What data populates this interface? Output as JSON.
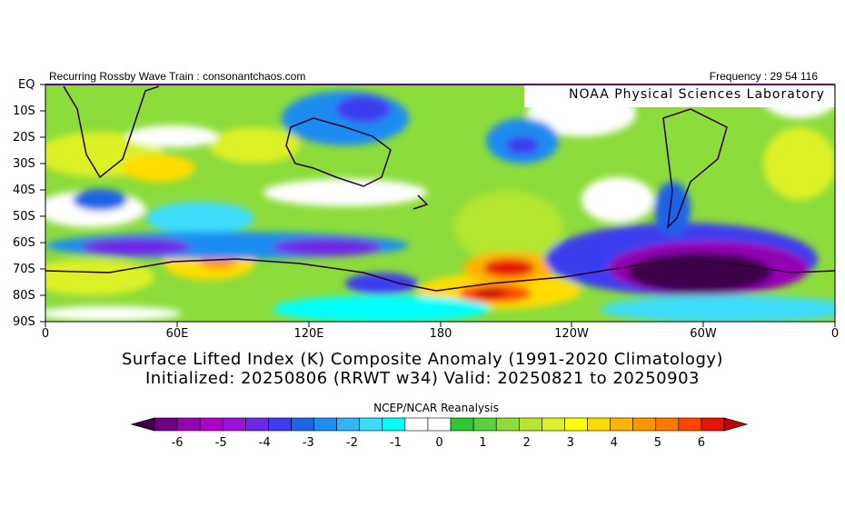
{
  "header": {
    "left_text": "Recurring Rossby Wave Train : consonantchaos.com",
    "right_text": "Frequency : 29 54 116"
  },
  "map": {
    "watermark": "NOAA Physical Sciences Laboratory",
    "lat_labels": [
      "EQ",
      "10S",
      "20S",
      "30S",
      "40S",
      "50S",
      "60S",
      "70S",
      "80S",
      "90S"
    ],
    "lon_labels": [
      "0",
      "60E",
      "120E",
      "180",
      "120W",
      "60W",
      "0"
    ]
  },
  "titles": {
    "line1": "Surface Lifted Index (K) Composite Anomaly (1991-2020 Climatology)",
    "line2": "Initialized: 20250806 (RRWT w34) Valid: 20250821 to 20250903"
  },
  "colorbar": {
    "title": "NCEP/NCAR Reanalysis",
    "tick_labels": [
      "-6",
      "-5",
      "-4",
      "-3",
      "-2",
      "-1",
      "0",
      "1",
      "2",
      "3",
      "4",
      "5",
      "6"
    ],
    "colors": [
      "#3d0049",
      "#6e0087",
      "#9400b4",
      "#b000c8",
      "#9a14d8",
      "#6e28e6",
      "#3c3cf0",
      "#1e64e6",
      "#1e8cf0",
      "#32b4f5",
      "#3cdcfa",
      "#00ffff",
      "#ffffff",
      "#ffffff",
      "#30c830",
      "#5ad23c",
      "#8cdc3c",
      "#b4e632",
      "#dcf028",
      "#ffff00",
      "#ffdc00",
      "#ffb400",
      "#ff9600",
      "#ff7800",
      "#ff4600",
      "#e61400",
      "#c00000"
    ]
  }
}
